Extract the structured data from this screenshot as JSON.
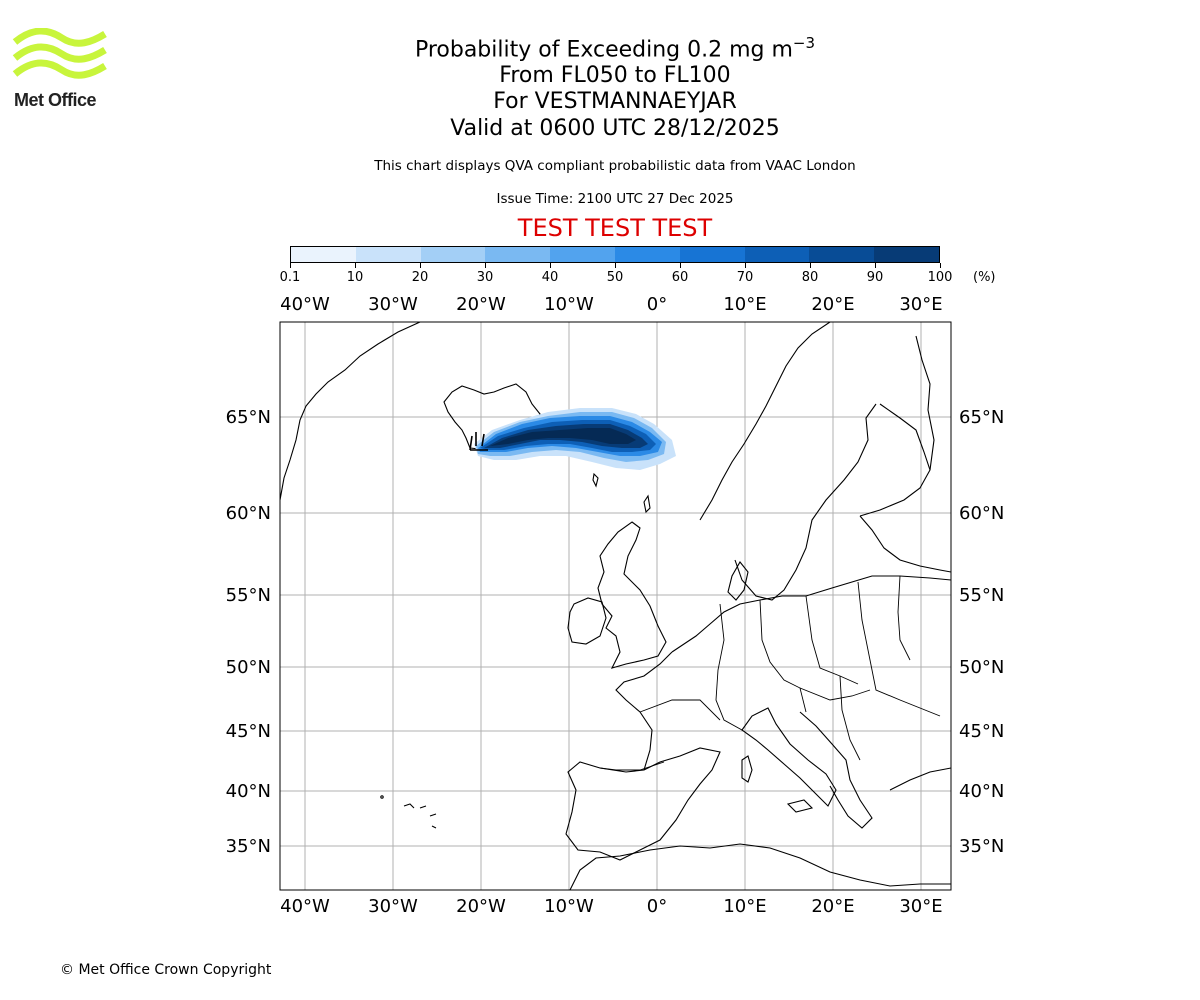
{
  "logo": {
    "text": "Met Office",
    "color": "#c8f53c"
  },
  "title": {
    "line1_main": "Probability of Exceeding 0.2 mg m",
    "line1_sup": "−3",
    "line2": "From FL050 to FL100",
    "line3": "For VESTMANNAEYJAR",
    "line4": "Valid at 0600 UTC 28/12/2025"
  },
  "info": {
    "description": "This chart displays QVA compliant probabilistic data from VAAC London",
    "issue_time": "Issue Time: 2100 UTC 27 Dec 2025",
    "test_banner": "TEST TEST TEST",
    "test_color": "#dd0000"
  },
  "colorbar": {
    "unit": "(%)",
    "ticks": [
      "0.1",
      "10",
      "20",
      "30",
      "40",
      "50",
      "60",
      "70",
      "80",
      "90",
      "100"
    ],
    "colors": [
      "#eaf3fd",
      "#c9e2fa",
      "#a3cff6",
      "#7ab9f2",
      "#52a3ee",
      "#2b8ae6",
      "#1774d4",
      "#0d5fb6",
      "#084c96",
      "#073b76",
      "#052a55"
    ]
  },
  "map": {
    "lon_labels": [
      "40°W",
      "30°W",
      "20°W",
      "10°W",
      "0°",
      "10°E",
      "20°E",
      "30°E"
    ],
    "lat_labels": [
      "65°N",
      "60°N",
      "55°N",
      "50°N",
      "45°N",
      "40°N",
      "35°N"
    ],
    "volcano": "VESTMANNAEYJAR"
  },
  "chart_data": {
    "type": "heatmap",
    "title": "Probability of Exceeding 0.2 mg m−3",
    "region": "North Atlantic and Europe",
    "plume": {
      "description_levels": "probability (%) of ash concentration exceeding 0.2 mg m-3",
      "core_probability_range": [
        80,
        100
      ],
      "lon_extent": [
        -20,
        2
      ],
      "lat_extent": [
        63,
        65
      ],
      "source": "Iceland (south coast)"
    },
    "colorbar_range": [
      0.1,
      100
    ]
  },
  "footer": {
    "copyright": "© Met Office Crown Copyright"
  }
}
